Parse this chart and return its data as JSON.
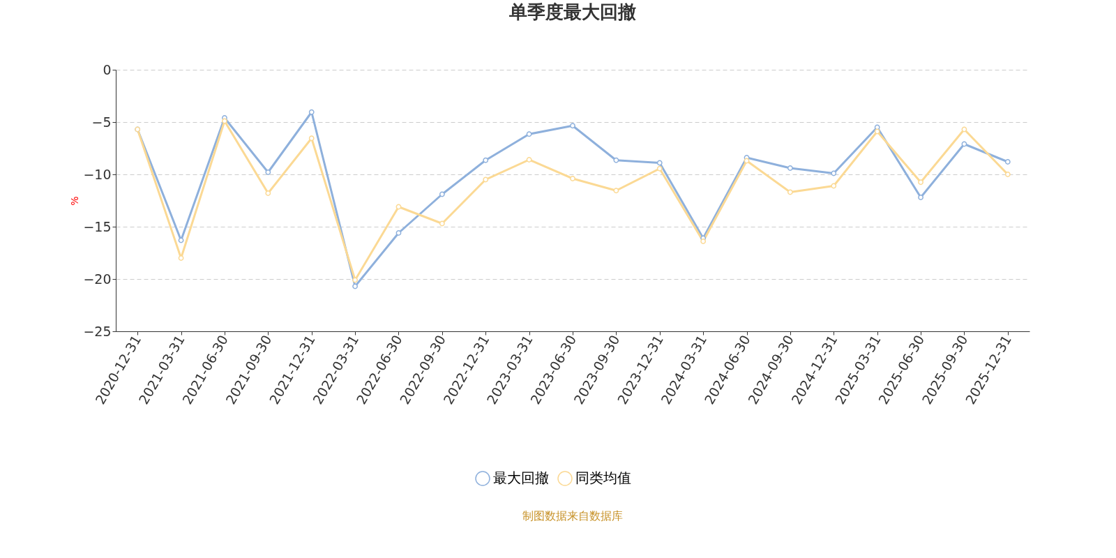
{
  "chart_data": {
    "type": "line",
    "title": "单季度最大回撤",
    "ylabel": "%",
    "categories": [
      "2020-12-31",
      "2021-03-31",
      "2021-06-30",
      "2021-09-30",
      "2021-12-31",
      "2022-03-31",
      "2022-06-30",
      "2022-09-30",
      "2022-12-31",
      "2023-03-31",
      "2023-06-30",
      "2023-09-30",
      "2023-12-31",
      "2024-03-31",
      "2024-06-30",
      "2024-09-30",
      "2024-12-31",
      "2025-03-31",
      "2025-06-30",
      "2025-09-30",
      "2025-12-31"
    ],
    "series": [
      {
        "name": "最大回撤",
        "color": "#8eb0dc",
        "values": [
          -5.7,
          -16.3,
          -4.6,
          -9.8,
          -4.05,
          -20.7,
          -15.6,
          -11.9,
          -8.65,
          -6.15,
          -5.35,
          -8.65,
          -8.9,
          -16.1,
          -8.4,
          -9.4,
          -9.9,
          -5.5,
          -12.2,
          -7.1,
          -8.8
        ]
      },
      {
        "name": "同类均值",
        "color": "#fbd994",
        "values": [
          -5.7,
          -18.0,
          -4.9,
          -11.8,
          -6.55,
          -20.1,
          -13.1,
          -14.7,
          -10.5,
          -8.6,
          -10.4,
          -11.55,
          -9.45,
          -16.4,
          -8.7,
          -11.7,
          -11.1,
          -5.9,
          -10.75,
          -5.7,
          -10.0
        ]
      }
    ],
    "ylim": [
      -25,
      0
    ],
    "yticks": [
      0,
      -5,
      -10,
      -15,
      -20,
      -25
    ],
    "grid": "y",
    "legend": "bottom",
    "marker": "circle",
    "line_style": "solid",
    "annotations": [
      "制图数据来自数据库"
    ]
  }
}
